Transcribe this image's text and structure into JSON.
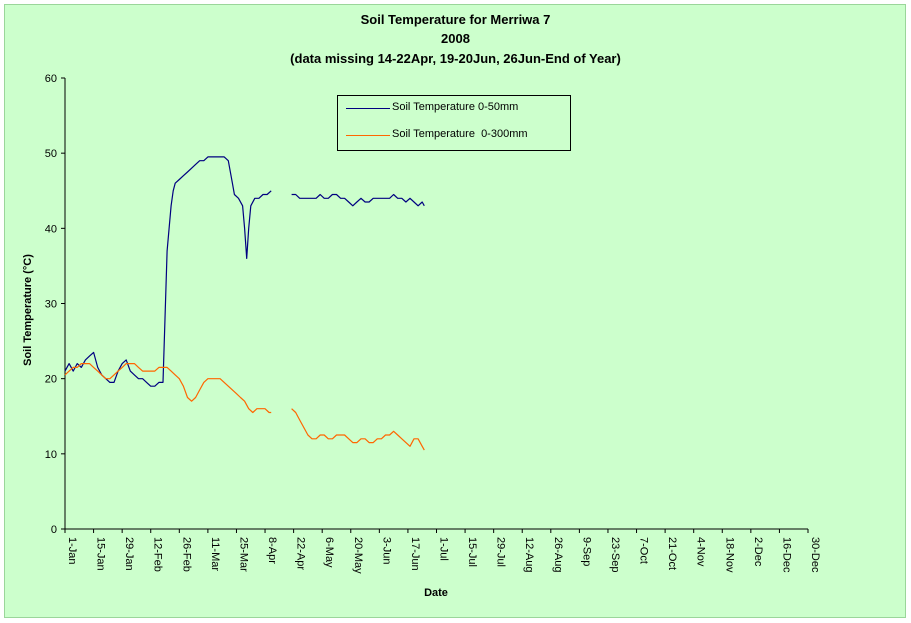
{
  "chart_data": {
    "type": "line",
    "title": "Soil Temperature for Merriwa 7",
    "subtitle_year": "2008",
    "subtitle_note": "(data missing 14-22Apr, 19-20Jun, 26Jun-End of Year)",
    "xlabel": "Date",
    "ylabel": "Soil Temperature (°C)",
    "ylim": [
      0,
      60
    ],
    "yticks": [
      0,
      10,
      20,
      30,
      40,
      50,
      60
    ],
    "xlim_days": [
      0,
      364
    ],
    "xticks": [
      {
        "label": "1-Jan",
        "day": 0
      },
      {
        "label": "15-Jan",
        "day": 14
      },
      {
        "label": "29-Jan",
        "day": 28
      },
      {
        "label": "12-Feb",
        "day": 42
      },
      {
        "label": "26-Feb",
        "day": 56
      },
      {
        "label": "11-Mar",
        "day": 70
      },
      {
        "label": "25-Mar",
        "day": 84
      },
      {
        "label": "8-Apr",
        "day": 98
      },
      {
        "label": "22-Apr",
        "day": 112
      },
      {
        "label": "6-May",
        "day": 126
      },
      {
        "label": "20-May",
        "day": 140
      },
      {
        "label": "3-Jun",
        "day": 154
      },
      {
        "label": "17-Jun",
        "day": 168
      },
      {
        "label": "1-Jul",
        "day": 182
      },
      {
        "label": "15-Jul",
        "day": 196
      },
      {
        "label": "29-Jul",
        "day": 210
      },
      {
        "label": "12-Aug",
        "day": 224
      },
      {
        "label": "26-Aug",
        "day": 238
      },
      {
        "label": "9-Sep",
        "day": 252
      },
      {
        "label": "23-Sep",
        "day": 266
      },
      {
        "label": "7-Oct",
        "day": 280
      },
      {
        "label": "21-Oct",
        "day": 294
      },
      {
        "label": "4-Nov",
        "day": 308
      },
      {
        "label": "18-Nov",
        "day": 322
      },
      {
        "label": "2-Dec",
        "day": 336
      },
      {
        "label": "16-Dec",
        "day": 350
      },
      {
        "label": "30-Dec",
        "day": 364
      }
    ],
    "legend_position": "top-center",
    "grid": false,
    "series": [
      {
        "name": "Soil Temperature 0-50mm",
        "color": "#000080",
        "segments": [
          [
            [
              0,
              21
            ],
            [
              2,
              22
            ],
            [
              4,
              21
            ],
            [
              6,
              22
            ],
            [
              8,
              21.5
            ],
            [
              10,
              22.5
            ],
            [
              12,
              23
            ],
            [
              14,
              23.5
            ],
            [
              16,
              21.5
            ],
            [
              18,
              20.5
            ],
            [
              20,
              20
            ],
            [
              22,
              19.5
            ],
            [
              24,
              19.5
            ],
            [
              26,
              21
            ],
            [
              28,
              22
            ],
            [
              30,
              22.5
            ],
            [
              32,
              21
            ],
            [
              34,
              20.5
            ],
            [
              36,
              20
            ],
            [
              38,
              20
            ],
            [
              40,
              19.5
            ],
            [
              42,
              19
            ],
            [
              44,
              19
            ],
            [
              46,
              19.5
            ],
            [
              48,
              19.5
            ],
            [
              49,
              28
            ],
            [
              50,
              37
            ],
            [
              51,
              40
            ],
            [
              52,
              43
            ],
            [
              53,
              45
            ],
            [
              54,
              46
            ],
            [
              56,
              46.5
            ],
            [
              58,
              47
            ],
            [
              60,
              47.5
            ],
            [
              62,
              48
            ],
            [
              64,
              48.5
            ],
            [
              66,
              49
            ],
            [
              68,
              49
            ],
            [
              70,
              49.5
            ],
            [
              72,
              49.5
            ],
            [
              74,
              49.5
            ],
            [
              76,
              49.5
            ],
            [
              78,
              49.5
            ],
            [
              80,
              49
            ],
            [
              82,
              46
            ],
            [
              83,
              44.5
            ],
            [
              85,
              44
            ],
            [
              87,
              43
            ],
            [
              88,
              40
            ],
            [
              89,
              36
            ],
            [
              90,
              40
            ],
            [
              91,
              43
            ],
            [
              93,
              44
            ],
            [
              95,
              44
            ],
            [
              97,
              44.5
            ],
            [
              99,
              44.5
            ],
            [
              101,
              45
            ]
          ],
          [
            [
              111,
              44.5
            ],
            [
              113,
              44.5
            ],
            [
              115,
              44
            ],
            [
              117,
              44
            ],
            [
              119,
              44
            ],
            [
              121,
              44
            ],
            [
              123,
              44
            ],
            [
              125,
              44.5
            ],
            [
              127,
              44
            ],
            [
              129,
              44
            ],
            [
              131,
              44.5
            ],
            [
              133,
              44.5
            ],
            [
              135,
              44
            ],
            [
              137,
              44
            ],
            [
              139,
              43.5
            ],
            [
              141,
              43
            ],
            [
              143,
              43.5
            ],
            [
              145,
              44
            ],
            [
              147,
              43.5
            ],
            [
              149,
              43.5
            ],
            [
              151,
              44
            ],
            [
              153,
              44
            ],
            [
              155,
              44
            ],
            [
              157,
              44
            ],
            [
              159,
              44
            ],
            [
              161,
              44.5
            ],
            [
              163,
              44
            ],
            [
              165,
              44
            ],
            [
              167,
              43.5
            ],
            [
              169,
              44
            ],
            [
              171,
              43.5
            ],
            [
              173,
              43
            ],
            [
              175,
              43.5
            ],
            [
              176,
              43
            ]
          ]
        ]
      },
      {
        "name": "Soil Temperature  0-300mm",
        "color": "#ff6600",
        "segments": [
          [
            [
              0,
              20.5
            ],
            [
              2,
              21
            ],
            [
              4,
              21.5
            ],
            [
              6,
              21.5
            ],
            [
              8,
              22
            ],
            [
              10,
              22
            ],
            [
              12,
              22
            ],
            [
              14,
              21.5
            ],
            [
              16,
              21
            ],
            [
              18,
              20.5
            ],
            [
              20,
              20
            ],
            [
              22,
              20
            ],
            [
              24,
              20.5
            ],
            [
              26,
              21
            ],
            [
              28,
              21.5
            ],
            [
              30,
              22
            ],
            [
              32,
              22
            ],
            [
              34,
              22
            ],
            [
              36,
              21.5
            ],
            [
              38,
              21
            ],
            [
              40,
              21
            ],
            [
              42,
              21
            ],
            [
              44,
              21
            ],
            [
              46,
              21.5
            ],
            [
              48,
              21.5
            ],
            [
              50,
              21.5
            ],
            [
              52,
              21
            ],
            [
              54,
              20.5
            ],
            [
              56,
              20
            ],
            [
              58,
              19
            ],
            [
              60,
              17.5
            ],
            [
              62,
              17
            ],
            [
              64,
              17.5
            ],
            [
              66,
              18.5
            ],
            [
              68,
              19.5
            ],
            [
              70,
              20
            ],
            [
              72,
              20
            ],
            [
              74,
              20
            ],
            [
              76,
              20
            ],
            [
              78,
              19.5
            ],
            [
              80,
              19
            ],
            [
              82,
              18.5
            ],
            [
              84,
              18
            ],
            [
              86,
              17.5
            ],
            [
              88,
              17
            ],
            [
              90,
              16
            ],
            [
              92,
              15.5
            ],
            [
              94,
              16
            ],
            [
              96,
              16
            ],
            [
              98,
              16
            ],
            [
              100,
              15.5
            ],
            [
              101,
              15.5
            ]
          ],
          [
            [
              111,
              16
            ],
            [
              113,
              15.5
            ],
            [
              115,
              14.5
            ],
            [
              117,
              13.5
            ],
            [
              119,
              12.5
            ],
            [
              121,
              12
            ],
            [
              123,
              12
            ],
            [
              125,
              12.5
            ],
            [
              127,
              12.5
            ],
            [
              129,
              12
            ],
            [
              131,
              12
            ],
            [
              133,
              12.5
            ],
            [
              135,
              12.5
            ],
            [
              137,
              12.5
            ],
            [
              139,
              12
            ],
            [
              141,
              11.5
            ],
            [
              143,
              11.5
            ],
            [
              145,
              12
            ],
            [
              147,
              12
            ],
            [
              149,
              11.5
            ],
            [
              151,
              11.5
            ],
            [
              153,
              12
            ],
            [
              155,
              12
            ],
            [
              157,
              12.5
            ],
            [
              159,
              12.5
            ],
            [
              161,
              13
            ],
            [
              163,
              12.5
            ],
            [
              165,
              12
            ],
            [
              167,
              11.5
            ],
            [
              169,
              11
            ],
            [
              171,
              12
            ],
            [
              173,
              12
            ],
            [
              175,
              11
            ],
            [
              176,
              10.5
            ]
          ]
        ]
      }
    ]
  }
}
